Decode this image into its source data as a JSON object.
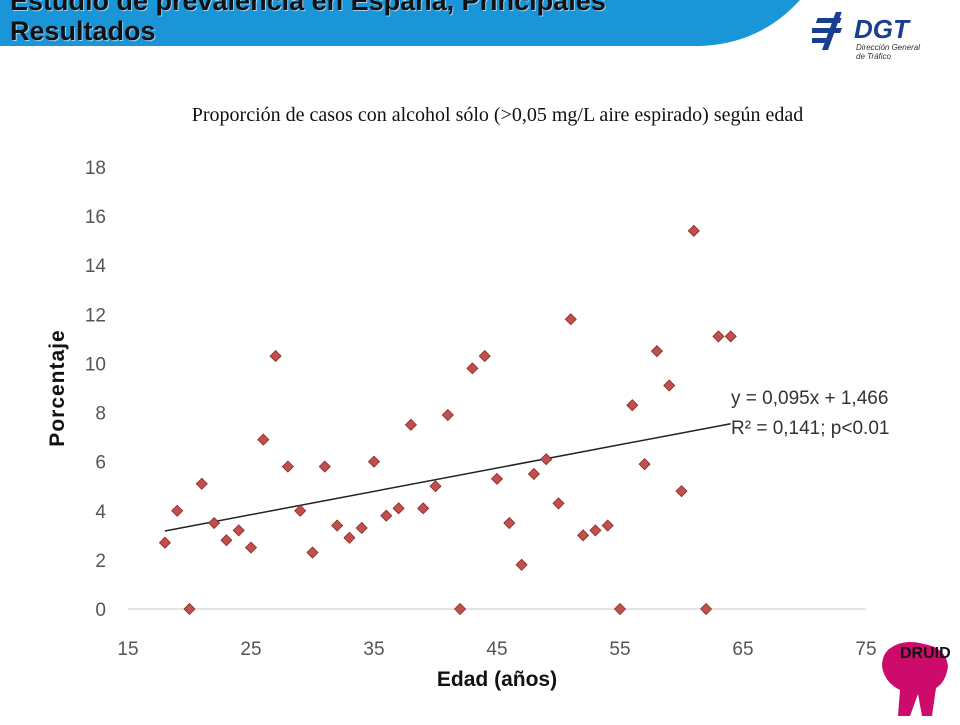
{
  "header": {
    "title_line1": "Estudio de prevalencia en España, Principales",
    "title_line2": "Resultados",
    "accent_color": "#1a95d8"
  },
  "logos": {
    "dgt_text": "DGT",
    "dgt_sub1": "Dirección General",
    "dgt_sub2": "de Tráfico",
    "dgt_color": "#1b3f8f",
    "druid_text": "DRUID",
    "druid_color": "#cc0b6b"
  },
  "subtitle": "Proporción de casos con alcohol sólo (>0,05 mg/L aire espirado) según edad",
  "chart_data": {
    "type": "scatter",
    "xlabel": "Edad (años)",
    "ylabel": "Porcentaje",
    "xlim": [
      15,
      75
    ],
    "ylim": [
      0,
      18
    ],
    "xticks": [
      15,
      25,
      35,
      45,
      55,
      65,
      75
    ],
    "yticks": [
      0,
      2,
      4,
      6,
      8,
      10,
      12,
      14,
      16,
      18
    ],
    "marker_color": "#c0504d",
    "grid": false,
    "trendline": {
      "slope": 0.095,
      "intercept": 1.466,
      "x_range": [
        18,
        64
      ]
    },
    "annotation": [
      "y = 0,095x + 1,466",
      "R² = 0,141; p<0.01"
    ],
    "points": [
      [
        18,
        2.7
      ],
      [
        19,
        4.0
      ],
      [
        20,
        0.0
      ],
      [
        21,
        5.1
      ],
      [
        22,
        3.5
      ],
      [
        23,
        2.8
      ],
      [
        24,
        3.2
      ],
      [
        25,
        2.5
      ],
      [
        26,
        6.9
      ],
      [
        27,
        10.3
      ],
      [
        28,
        5.8
      ],
      [
        29,
        4.0
      ],
      [
        30,
        2.3
      ],
      [
        31,
        5.8
      ],
      [
        32,
        3.4
      ],
      [
        33,
        2.9
      ],
      [
        34,
        3.3
      ],
      [
        35,
        6.0
      ],
      [
        36,
        3.8
      ],
      [
        37,
        4.1
      ],
      [
        38,
        7.5
      ],
      [
        39,
        4.1
      ],
      [
        40,
        5.0
      ],
      [
        41,
        7.9
      ],
      [
        42,
        0.0
      ],
      [
        43,
        9.8
      ],
      [
        44,
        10.3
      ],
      [
        45,
        5.3
      ],
      [
        46,
        3.5
      ],
      [
        47,
        1.8
      ],
      [
        48,
        5.5
      ],
      [
        49,
        6.1
      ],
      [
        50,
        4.3
      ],
      [
        51,
        11.8
      ],
      [
        52,
        3.0
      ],
      [
        53,
        3.2
      ],
      [
        54,
        3.4
      ],
      [
        55,
        0.0
      ],
      [
        56,
        8.3
      ],
      [
        57,
        5.9
      ],
      [
        58,
        10.5
      ],
      [
        59,
        9.1
      ],
      [
        60,
        4.8
      ],
      [
        61,
        15.4
      ],
      [
        62,
        0.0
      ],
      [
        63,
        11.1
      ],
      [
        64,
        11.1
      ]
    ]
  }
}
